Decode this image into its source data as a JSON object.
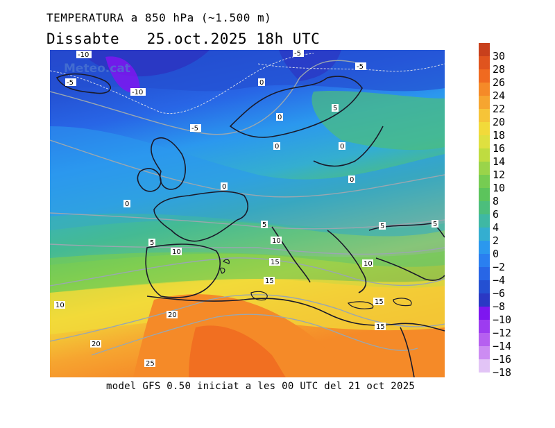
{
  "header": {
    "title": "TEMPERATURA a 850 hPa (~1.500 m)",
    "subtitle": "Dissabte   25.oct.2025 18h UTC"
  },
  "footer": {
    "model_run": "model GFS 0.50 iniciat a les 00 UTC del 21 oct 2025"
  },
  "map": {
    "watermark": "Meteo.cat",
    "isotherm_labels": [
      "-10",
      "-10",
      "-5",
      "-5",
      "-5",
      "-5",
      "0",
      "0",
      "0",
      "0",
      "0",
      "0",
      "0",
      "5",
      "5",
      "5",
      "5",
      "5",
      "10",
      "10",
      "10",
      "10",
      "15",
      "15",
      "15",
      "15",
      "20",
      "20",
      "25"
    ]
  },
  "colorbar": {
    "labels": [
      "30",
      "28",
      "26",
      "24",
      "22",
      "20",
      "18",
      "16",
      "14",
      "12",
      "10",
      "8",
      "6",
      "4",
      "2",
      "0",
      "−2",
      "−4",
      "−6",
      "−8",
      "−10",
      "−12",
      "−14",
      "−16",
      "−18"
    ],
    "colors": [
      "#c8401c",
      "#e0541e",
      "#f06a20",
      "#f58a28",
      "#f6a530",
      "#f6c438",
      "#f2da3a",
      "#dfe040",
      "#bfdc40",
      "#9ad44a",
      "#76cc52",
      "#5cc45c",
      "#4cbe7c",
      "#3fb8a4",
      "#34aed0",
      "#2b98ee",
      "#2a7ff0",
      "#2866e6",
      "#2450d2",
      "#2a38c4",
      "#7e16f0",
      "#9d3cf0",
      "#b660f0",
      "#cc8cf2",
      "#e2c4f6"
    ]
  }
}
